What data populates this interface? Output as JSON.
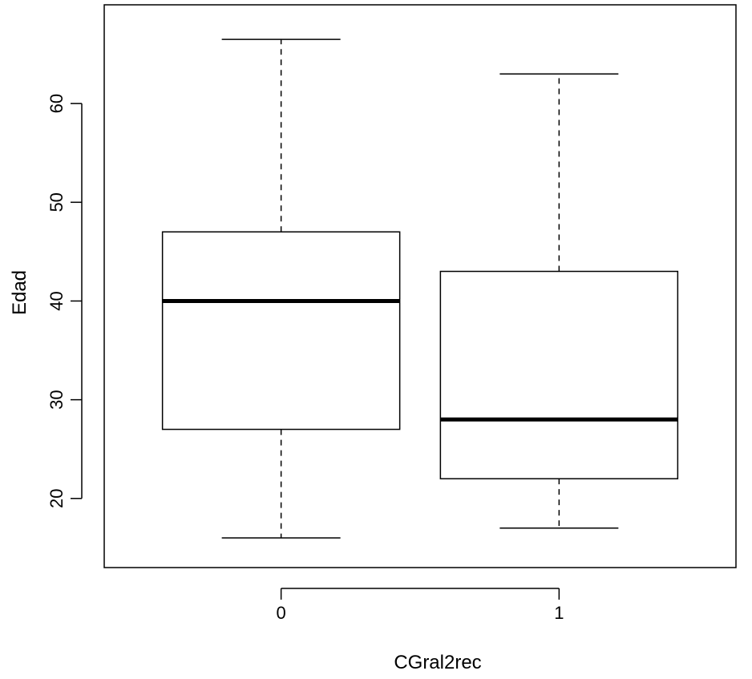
{
  "chart_data": {
    "type": "boxplot",
    "xlabel": "CGral2rec",
    "ylabel": "Edad",
    "categories": [
      "0",
      "1"
    ],
    "ylim": [
      13,
      70
    ],
    "yticks": [
      20,
      30,
      40,
      50,
      60
    ],
    "grid": false,
    "legend": "none",
    "boxes": [
      {
        "category": "0",
        "whisker_low": 16,
        "q1": 27,
        "median": 40,
        "q3": 47,
        "whisker_high": 66.5
      },
      {
        "category": "1",
        "whisker_low": 17,
        "q1": 22,
        "median": 28,
        "q3": 43,
        "whisker_high": 63
      }
    ]
  }
}
